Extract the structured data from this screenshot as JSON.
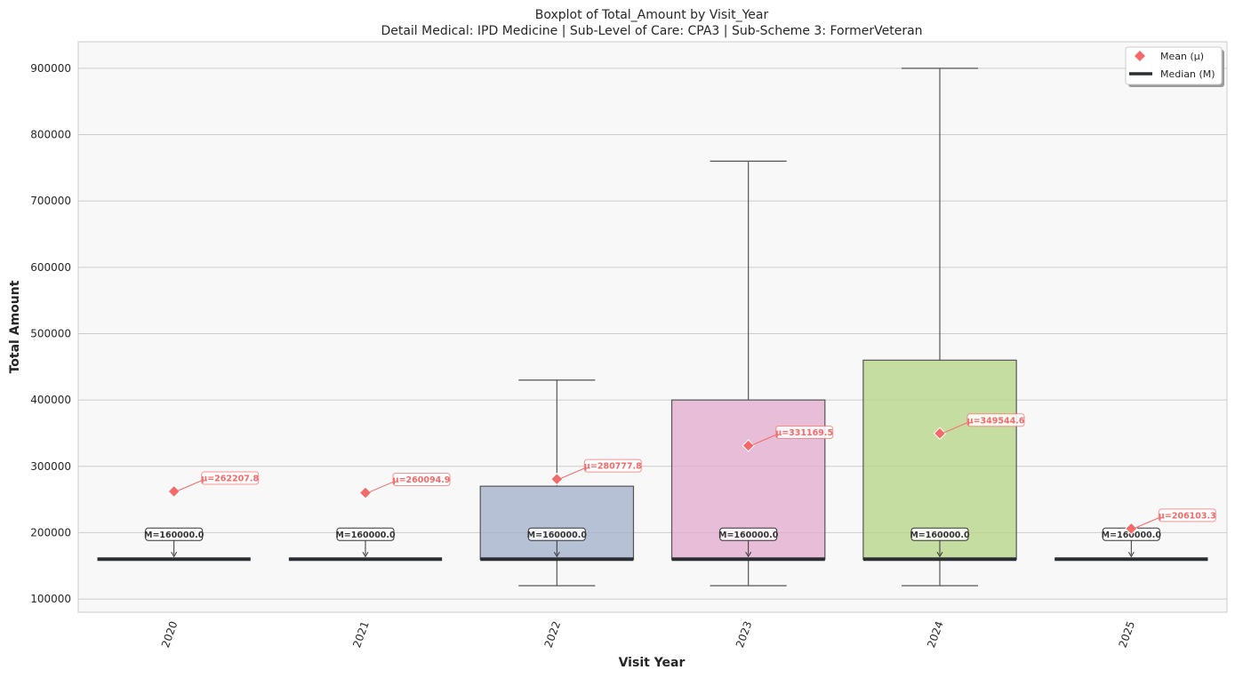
{
  "chart_data": {
    "type": "box",
    "title": "Boxplot of Total_Amount by Visit_Year",
    "subtitle": "Detail Medical: IPD Medicine | Sub-Level of Care: CPA3 | Sub-Scheme 3: FormerVeteran",
    "xlabel": "Visit Year",
    "ylabel": "Total Amount",
    "ylim": [
      80000,
      940000
    ],
    "yticks": [
      100000,
      200000,
      300000,
      400000,
      500000,
      600000,
      700000,
      800000,
      900000
    ],
    "ytick_labels": [
      "100000",
      "200000",
      "300000",
      "400000",
      "500000",
      "600000",
      "700000",
      "800000",
      "900000"
    ],
    "grid": true,
    "legend_position": "top-right",
    "legend": [
      {
        "label": "Mean (μ)",
        "marker": "diamond",
        "color": "#f46a6a"
      },
      {
        "label": "Median (M)",
        "marker": "line",
        "color": "#2b2f33"
      }
    ],
    "categories": [
      "2020",
      "2021",
      "2022",
      "2023",
      "2024",
      "2025"
    ],
    "boxes": [
      {
        "category": "2020",
        "whisker_low": 160000,
        "q1": 160000,
        "median": 160000,
        "q3": 160000,
        "whisker_high": 160000,
        "mean": 262207.8,
        "color": "#8ec9b6",
        "median_label": "M=160000.0",
        "mean_label": "μ=262207.8"
      },
      {
        "category": "2021",
        "whisker_low": 160000,
        "q1": 160000,
        "median": 160000,
        "q3": 160000,
        "whisker_high": 160000,
        "mean": 260094.9,
        "color": "#f0a884",
        "median_label": "M=160000.0",
        "mean_label": "μ=260094.9"
      },
      {
        "category": "2022",
        "whisker_low": 120000,
        "q1": 160000,
        "median": 160000,
        "q3": 270000,
        "whisker_high": 430000,
        "mean": 280777.8,
        "color": "#a2afcb",
        "median_label": "M=160000.0",
        "mean_label": "μ=280777.8"
      },
      {
        "category": "2023",
        "whisker_low": 120000,
        "q1": 160000,
        "median": 160000,
        "q3": 400000,
        "whisker_high": 760000,
        "mean": 331169.5,
        "color": "#e1a9cc",
        "median_label": "M=160000.0",
        "mean_label": "μ=331169.5"
      },
      {
        "category": "2024",
        "whisker_low": 120000,
        "q1": 160000,
        "median": 160000,
        "q3": 460000,
        "whisker_high": 900000,
        "mean": 349544.6,
        "color": "#b6d486",
        "median_label": "M=160000.0",
        "mean_label": "μ=349544.6"
      },
      {
        "category": "2025",
        "whisker_low": 160000,
        "q1": 160000,
        "median": 160000,
        "q3": 160000,
        "whisker_high": 160000,
        "mean": 206103.3,
        "color": "#f2dc7e",
        "median_label": "M=160000.0",
        "mean_label": "μ=206103.3"
      }
    ],
    "colors": {
      "mean_marker": "#f46a6a",
      "median_line": "#2b2f33",
      "plot_background": "#f8f8f8",
      "grid": "#cccccc"
    }
  }
}
